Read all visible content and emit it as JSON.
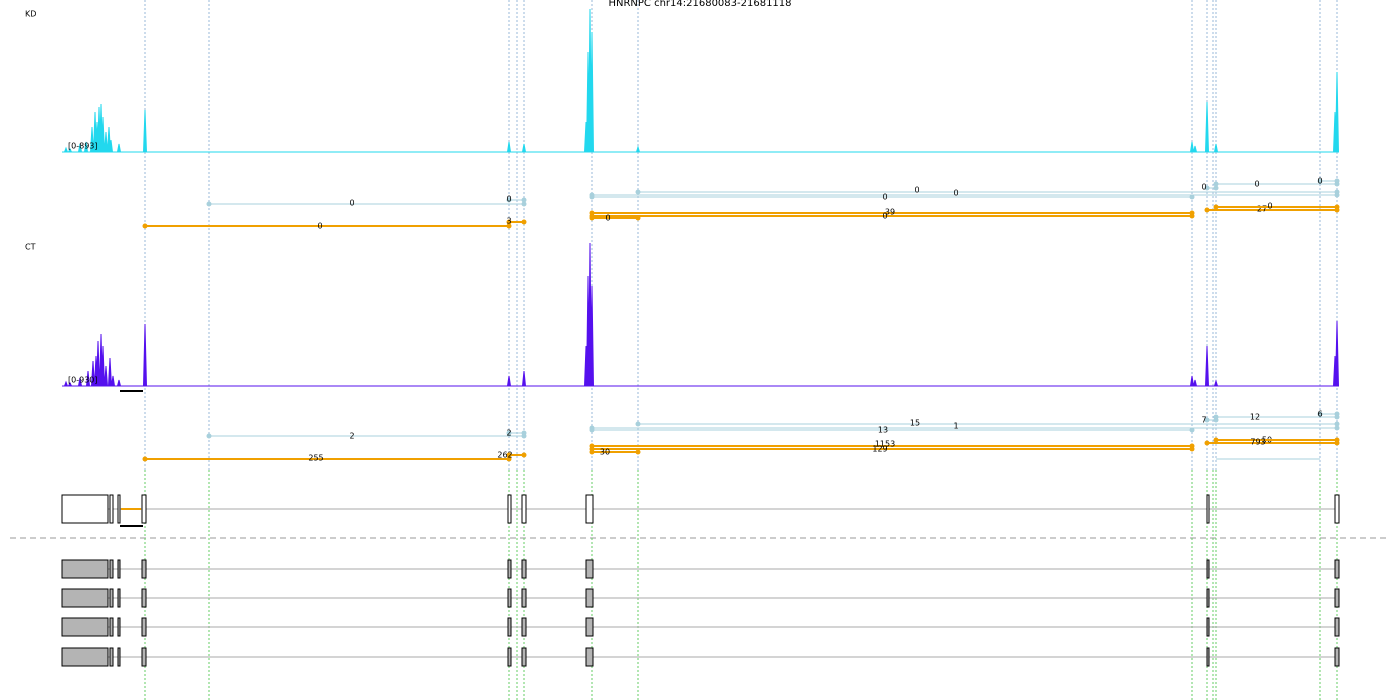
{
  "title": "HNRNPC chr14:21680083-21681118",
  "tracks": [
    {
      "label": "KD",
      "range": "[0-893]",
      "junction_labels": [
        "0",
        "0",
        "0",
        "0",
        "0",
        "0",
        "0",
        "0",
        "0",
        "3",
        "39",
        "0",
        "0",
        "27",
        "0"
      ]
    },
    {
      "label": "CT",
      "range": "[0-930]",
      "junction_labels": [
        "2",
        "2",
        "15",
        "1",
        "13",
        "7",
        "12",
        "6",
        "255",
        "262",
        "1153",
        "129",
        "30",
        "50",
        "793"
      ]
    }
  ]
}
